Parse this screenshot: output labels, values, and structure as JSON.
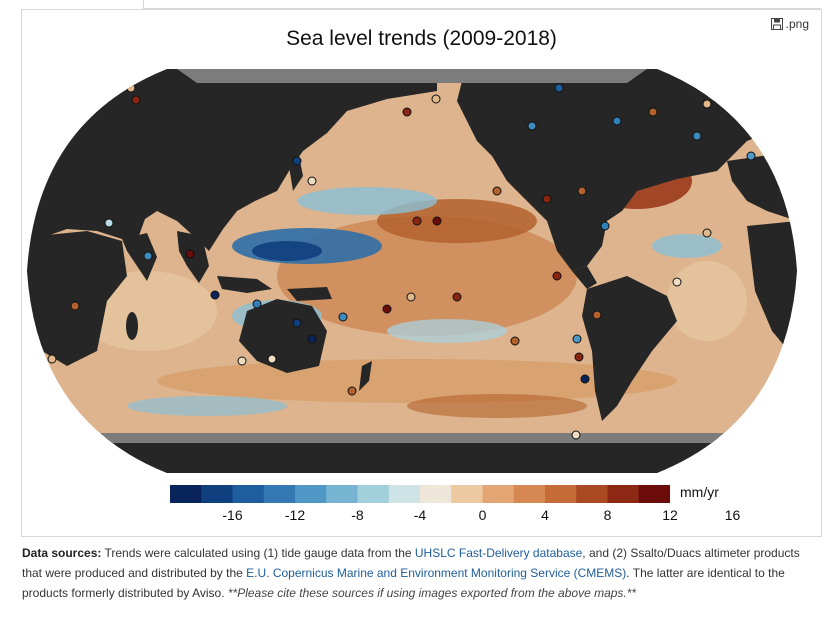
{
  "page": {
    "export_label": ".png"
  },
  "map": {
    "title": "Sea level trends (2009-2018)",
    "colorbar": {
      "unit": "mm/yr",
      "ticks": [
        "-16",
        "-12",
        "-8",
        "-4",
        "0",
        "4",
        "8",
        "12",
        "16"
      ],
      "colors": [
        "#08245a",
        "#0f3f7e",
        "#1e5e9e",
        "#3479b3",
        "#4f97c4",
        "#76b4d2",
        "#a2cfdc",
        "#cde3e6",
        "#eee6d8",
        "#ecc9a1",
        "#e2a573",
        "#d78852",
        "#c56b37",
        "#a94a22",
        "#8c2814",
        "#6b0b0a"
      ]
    },
    "land_color": "#262626",
    "ice_color": "#7c7c7c"
  },
  "sources": {
    "label": "Data sources:",
    "text_1": " Trends were calculated using (1) tide gauge data from the ",
    "link_1": "UHSLC Fast-Delivery database",
    "text_2": ", and (2) Ssalto/Duacs altimeter products that were produced and distributed by the ",
    "link_2": "E.U. Copernicus Marine and Environment Monitoring Service (CMEMS)",
    "text_3": ". The latter are identical to the products formerly distributed by Aviso. ",
    "note": "**Please cite these sources if using images exported from the above maps.**"
  }
}
